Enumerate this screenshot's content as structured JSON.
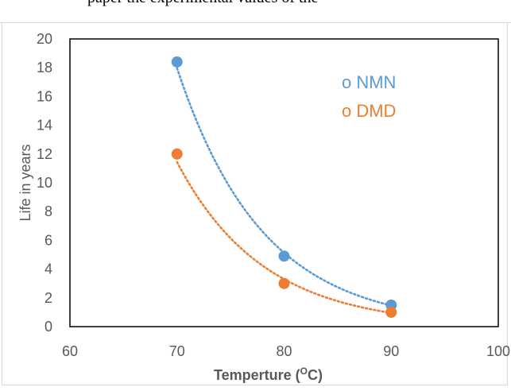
{
  "page_header": {
    "partial_text": "paper the experimental values of the"
  },
  "chart_data": {
    "type": "scatter",
    "title": "",
    "xlabel": "Temperture (",
    "xlabel_sup": "O",
    "xlabel_tail": "C)",
    "ylabel": "Life in years",
    "xlim": [
      60,
      100
    ],
    "ylim": [
      0,
      20
    ],
    "x_ticks": [
      "60",
      "70",
      "80",
      "90",
      "100"
    ],
    "y_ticks": [
      "0",
      "2",
      "4",
      "6",
      "8",
      "10",
      "12",
      "14",
      "16",
      "18",
      "20"
    ],
    "grid": false,
    "legend_placement": "top-right",
    "trendline": "exponential, dotted",
    "series": [
      {
        "name": "o NMN",
        "color": "#5b9bd5",
        "x": [
          70,
          80,
          90
        ],
        "y": [
          18.4,
          4.9,
          1.5
        ]
      },
      {
        "name": "o DMD",
        "color": "#ed7d31",
        "x": [
          70,
          80,
          90
        ],
        "y": [
          12.0,
          3.0,
          1.0
        ]
      }
    ]
  }
}
